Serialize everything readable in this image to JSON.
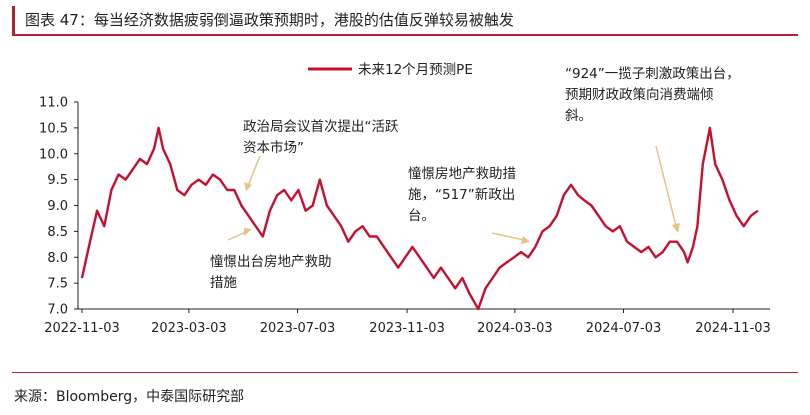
{
  "header": {
    "title": "图表 47：每当经济数据疲弱倒逼政策预期时，港股的估值反弹较易被触发"
  },
  "footer": {
    "source": "来源：Bloomberg，中泰国际研究部"
  },
  "chart_data": {
    "type": "line",
    "title": "",
    "xlabel": "",
    "ylabel": "",
    "ylim": [
      7.0,
      11.0
    ],
    "yticks": [
      "11.0",
      "10.5",
      "10.0",
      "9.5",
      "9.0",
      "8.5",
      "8.0",
      "7.5",
      "7.0"
    ],
    "xticks": [
      "2022-11-03",
      "2023-03-03",
      "2023-07-03",
      "2023-11-03",
      "2024-03-03",
      "2024-07-03",
      "2024-11-03"
    ],
    "legend": {
      "position": "top-center",
      "entries": [
        "未来12个月预测PE"
      ]
    },
    "grid": false,
    "color": "#c8102e",
    "series": [
      {
        "name": "未来12个月预测PE",
        "x": [
          "2022-11-03",
          "2022-11-12",
          "2022-11-20",
          "2022-11-28",
          "2022-12-06",
          "2022-12-14",
          "2022-12-22",
          "2022-12-30",
          "2023-01-07",
          "2023-01-15",
          "2023-01-23",
          "2023-01-28",
          "2023-02-02",
          "2023-02-10",
          "2023-02-18",
          "2023-02-26",
          "2023-03-06",
          "2023-03-14",
          "2023-03-22",
          "2023-03-30",
          "2023-04-07",
          "2023-04-15",
          "2023-04-23",
          "2023-05-01",
          "2023-05-09",
          "2023-05-17",
          "2023-05-25",
          "2023-06-02",
          "2023-06-10",
          "2023-06-18",
          "2023-06-26",
          "2023-07-04",
          "2023-07-12",
          "2023-07-20",
          "2023-07-28",
          "2023-08-05",
          "2023-08-13",
          "2023-08-21",
          "2023-08-29",
          "2023-09-06",
          "2023-09-14",
          "2023-09-22",
          "2023-09-30",
          "2023-10-08",
          "2023-10-16",
          "2023-10-24",
          "2023-11-01",
          "2023-11-09",
          "2023-11-17",
          "2023-11-25",
          "2023-12-03",
          "2023-12-11",
          "2023-12-19",
          "2023-12-27",
          "2024-01-04",
          "2024-01-12",
          "2024-01-22",
          "2024-01-30",
          "2024-02-07",
          "2024-02-15",
          "2024-02-23",
          "2024-03-02",
          "2024-03-10",
          "2024-03-18",
          "2024-03-26",
          "2024-04-03",
          "2024-04-11",
          "2024-04-19",
          "2024-04-27",
          "2024-05-05",
          "2024-05-13",
          "2024-05-20",
          "2024-05-28",
          "2024-06-05",
          "2024-06-13",
          "2024-06-21",
          "2024-06-29",
          "2024-07-07",
          "2024-07-15",
          "2024-07-23",
          "2024-07-31",
          "2024-08-08",
          "2024-08-16",
          "2024-08-24",
          "2024-09-01",
          "2024-09-09",
          "2024-09-13",
          "2024-09-19",
          "2024-09-24",
          "2024-09-30",
          "2024-10-08",
          "2024-10-14",
          "2024-10-22",
          "2024-10-30",
          "2024-11-07",
          "2024-11-15",
          "2024-11-23",
          "2024-12-01"
        ],
        "values": [
          7.6,
          8.3,
          8.9,
          8.6,
          9.3,
          9.6,
          9.5,
          9.7,
          9.9,
          9.8,
          10.1,
          10.5,
          10.1,
          9.8,
          9.3,
          9.2,
          9.4,
          9.5,
          9.4,
          9.6,
          9.5,
          9.3,
          9.3,
          9.0,
          8.8,
          8.6,
          8.4,
          8.9,
          9.2,
          9.3,
          9.1,
          9.3,
          8.9,
          9.0,
          9.5,
          9.0,
          8.8,
          8.6,
          8.3,
          8.5,
          8.6,
          8.4,
          8.4,
          8.2,
          8.0,
          7.8,
          8.0,
          8.2,
          8.0,
          7.8,
          7.6,
          7.8,
          7.6,
          7.4,
          7.6,
          7.3,
          7.0,
          7.4,
          7.6,
          7.8,
          7.9,
          8.0,
          8.1,
          8.0,
          8.2,
          8.5,
          8.6,
          8.8,
          9.2,
          9.4,
          9.2,
          9.1,
          9.0,
          8.8,
          8.6,
          8.5,
          8.6,
          8.3,
          8.2,
          8.1,
          8.2,
          8.0,
          8.1,
          8.3,
          8.3,
          8.1,
          7.9,
          8.2,
          8.6,
          9.8,
          10.5,
          9.8,
          9.5,
          9.1,
          8.8,
          8.6,
          8.8,
          8.9
        ]
      }
    ],
    "annotations": [
      {
        "lines": [
          "政治局会议首次提出“活跃",
          "资本市场”"
        ]
      },
      {
        "lines": [
          "憧憬出台房地产救助",
          "措施"
        ]
      },
      {
        "lines": [
          "憧憬房地产救助措",
          "施，“517”新政出",
          "台。"
        ]
      },
      {
        "lines": [
          "“924”一揽子刺激政策出台，",
          "预期财政政策向消费端倾",
          "斜。"
        ]
      }
    ]
  }
}
